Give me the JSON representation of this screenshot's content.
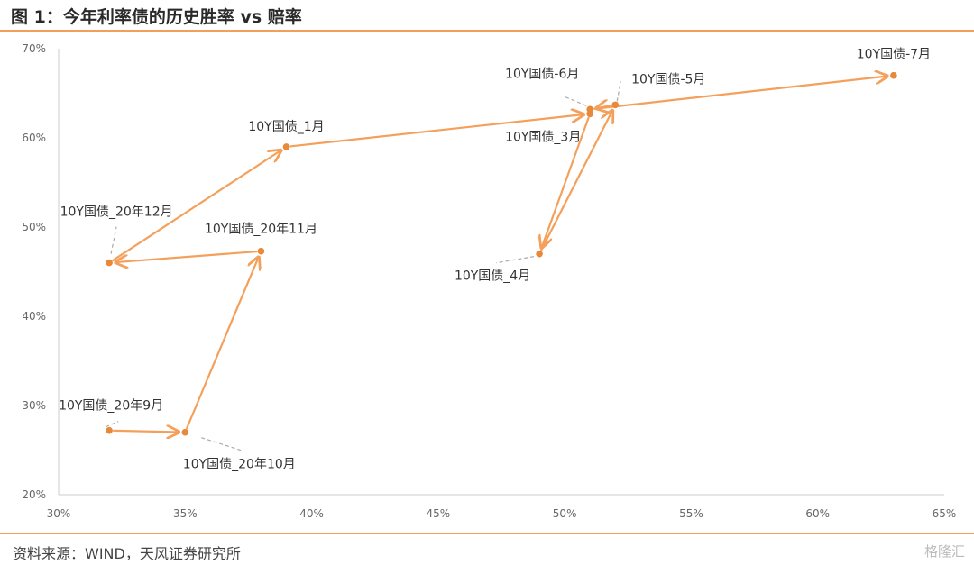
{
  "header": {
    "title": "图 1：今年利率债的历史胜率 vs 赔率"
  },
  "footer": {
    "source": "资料来源：WIND，天风证券研究所",
    "watermark": "格隆汇"
  },
  "colors": {
    "accent": "#f0a05a",
    "line": "#f4a05a",
    "point": "#e8893a",
    "leader": "#aaaaaa"
  },
  "chart_data": {
    "type": "scatter",
    "title": "",
    "xlabel": "",
    "ylabel": "",
    "xlim": [
      0.3,
      0.65
    ],
    "ylim": [
      0.2,
      0.7
    ],
    "x_ticks": [
      0.3,
      0.35,
      0.4,
      0.45,
      0.5,
      0.55,
      0.6,
      0.65
    ],
    "x_tick_labels": [
      "30%",
      "35%",
      "40%",
      "45%",
      "50%",
      "55%",
      "60%",
      "65%"
    ],
    "y_ticks": [
      0.2,
      0.3,
      0.4,
      0.5,
      0.6,
      0.7
    ],
    "y_tick_labels": [
      "20%",
      "30%",
      "40%",
      "50%",
      "60%",
      "70%"
    ],
    "grid": false,
    "connected": true,
    "arrows": true,
    "points": [
      {
        "label": "10Y国债_20年9月",
        "x": 0.32,
        "y": 0.272
      },
      {
        "label": "10Y国债_20年10月",
        "x": 0.35,
        "y": 0.27
      },
      {
        "label": "10Y国债_20年11月",
        "x": 0.38,
        "y": 0.473
      },
      {
        "label": "10Y国债_20年12月",
        "x": 0.32,
        "y": 0.46
      },
      {
        "label": "10Y国债_1月",
        "x": 0.39,
        "y": 0.59
      },
      {
        "label": "10Y国债_3月",
        "x": 0.51,
        "y": 0.627
      },
      {
        "label": "10Y国债_4月",
        "x": 0.49,
        "y": 0.47
      },
      {
        "label": "10Y国债-5月",
        "x": 0.52,
        "y": 0.637
      },
      {
        "label": "10Y国债-6月",
        "x": 0.51,
        "y": 0.632
      },
      {
        "label": "10Y国债-7月",
        "x": 0.63,
        "y": 0.67
      }
    ]
  }
}
